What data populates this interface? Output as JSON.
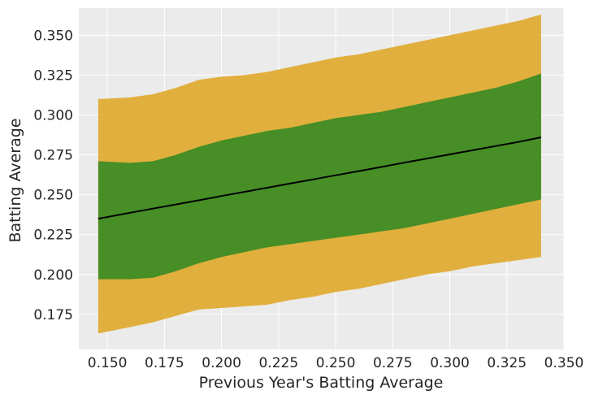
{
  "chart_data": {
    "type": "area",
    "title": "",
    "xlabel": "Previous Year's Batting Average",
    "ylabel": "Batting Average",
    "xlim": [
      0.1375,
      0.35
    ],
    "ylim": [
      0.153,
      0.367
    ],
    "x_ticks": [
      "0.150",
      "0.175",
      "0.200",
      "0.225",
      "0.250",
      "0.275",
      "0.300",
      "0.325",
      "0.350"
    ],
    "y_ticks": [
      "0.175",
      "0.200",
      "0.225",
      "0.250",
      "0.275",
      "0.300",
      "0.325",
      "0.350"
    ],
    "grid": true,
    "colors": {
      "background": "#ebebeb",
      "grid": "#ffffff",
      "outer_band": "#e0a92a",
      "inner_band": "#3d8c24",
      "mean_line": "#000000"
    },
    "x": [
      0.146,
      0.16,
      0.17,
      0.18,
      0.19,
      0.2,
      0.21,
      0.22,
      0.23,
      0.24,
      0.25,
      0.26,
      0.27,
      0.28,
      0.29,
      0.3,
      0.31,
      0.32,
      0.33,
      0.34
    ],
    "series": [
      {
        "band": "outer",
        "upper": [
          0.31,
          0.311,
          0.313,
          0.317,
          0.322,
          0.324,
          0.325,
          0.327,
          0.33,
          0.333,
          0.336,
          0.338,
          0.341,
          0.344,
          0.347,
          0.35,
          0.353,
          0.356,
          0.359,
          0.363
        ],
        "lower": [
          0.163,
          0.167,
          0.17,
          0.174,
          0.178,
          0.179,
          0.18,
          0.181,
          0.184,
          0.186,
          0.189,
          0.191,
          0.194,
          0.197,
          0.2,
          0.202,
          0.205,
          0.207,
          0.209,
          0.211
        ]
      },
      {
        "band": "inner",
        "upper": [
          0.271,
          0.27,
          0.271,
          0.275,
          0.28,
          0.284,
          0.287,
          0.29,
          0.292,
          0.295,
          0.298,
          0.3,
          0.302,
          0.305,
          0.308,
          0.311,
          0.314,
          0.317,
          0.321,
          0.326
        ],
        "lower": [
          0.197,
          0.197,
          0.198,
          0.202,
          0.207,
          0.211,
          0.214,
          0.217,
          0.219,
          0.221,
          0.223,
          0.225,
          0.227,
          0.229,
          0.232,
          0.235,
          0.238,
          0.241,
          0.244,
          0.247
        ]
      },
      {
        "band": "mean",
        "values": [
          0.235,
          0.2387,
          0.2413,
          0.2439,
          0.2465,
          0.2492,
          0.2518,
          0.2544,
          0.257,
          0.2596,
          0.2622,
          0.2648,
          0.2674,
          0.2701,
          0.2727,
          0.2753,
          0.2779,
          0.2805,
          0.2831,
          0.286
        ]
      }
    ]
  }
}
